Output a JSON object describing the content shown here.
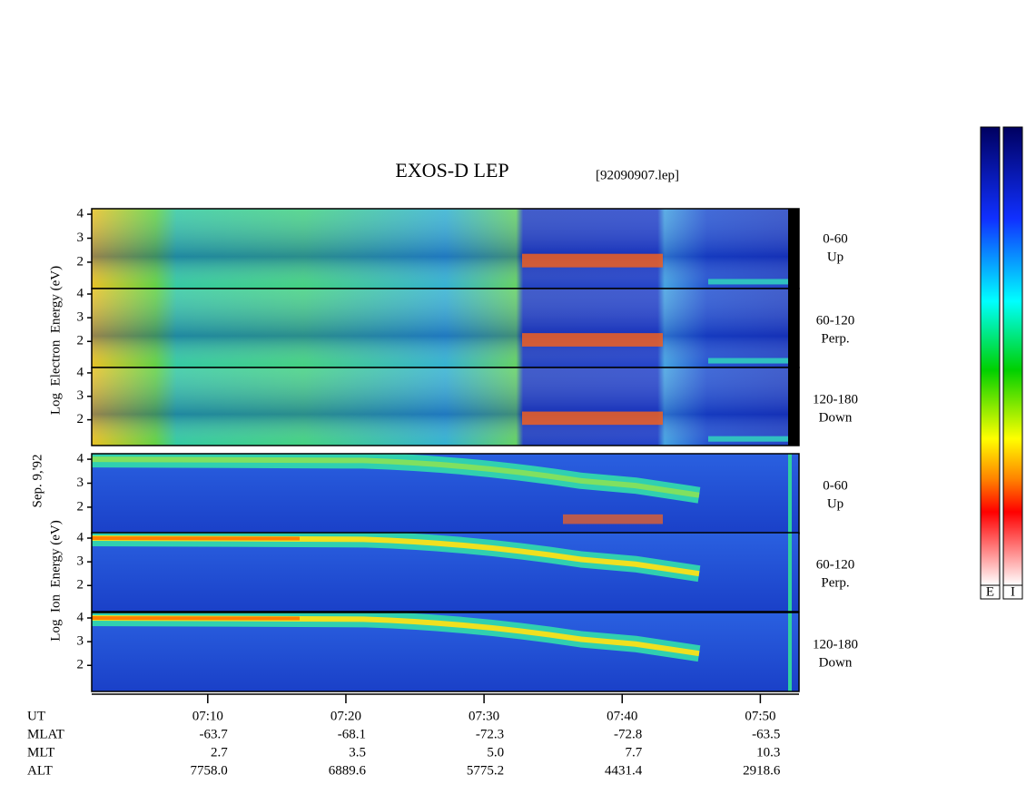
{
  "chart_data": {
    "type": "spectrogram",
    "title": "EXOS-D LEP",
    "file": "[92090907.lep]",
    "date_label": "Sep. 9,'92",
    "ylim": [
      0.9,
      4.23
    ],
    "yticks": [
      2,
      3,
      4
    ],
    "xlim": [
      421.6,
      472.8
    ],
    "xticks": [
      {
        "value": 430,
        "label": "07:10"
      },
      {
        "value": 440,
        "label": "07:20"
      },
      {
        "value": 450,
        "label": "07:30"
      },
      {
        "value": 460,
        "label": "07:40"
      },
      {
        "value": 470,
        "label": "07:50"
      }
    ],
    "groups": [
      {
        "ylabel": "Log  Electron  Energy (eV)",
        "panels": [
          [
            "0-60",
            "Up"
          ],
          [
            "60-120",
            "Perp."
          ],
          [
            "120-180",
            "Down"
          ]
        ]
      },
      {
        "ylabel": "Log  Ion  Energy (eV)",
        "panels": [
          [
            "0-60",
            "Up"
          ],
          [
            "60-120",
            "Perp."
          ],
          [
            "120-180",
            "Down"
          ]
        ]
      }
    ],
    "ephemeris": [
      {
        "name": "UT",
        "values": []
      },
      {
        "name": "MLAT",
        "values": [
          "-63.7",
          "-68.1",
          "-72.3",
          "-72.8",
          "-63.5"
        ]
      },
      {
        "name": "MLT",
        "values": [
          "2.7",
          "3.5",
          "5.0",
          "7.7",
          "10.3"
        ]
      },
      {
        "name": "ALT",
        "values": [
          "7758.0",
          "6889.6",
          "5775.2",
          "4431.4",
          "2918.6"
        ]
      }
    ],
    "colorbars": [
      "E",
      "I"
    ]
  }
}
